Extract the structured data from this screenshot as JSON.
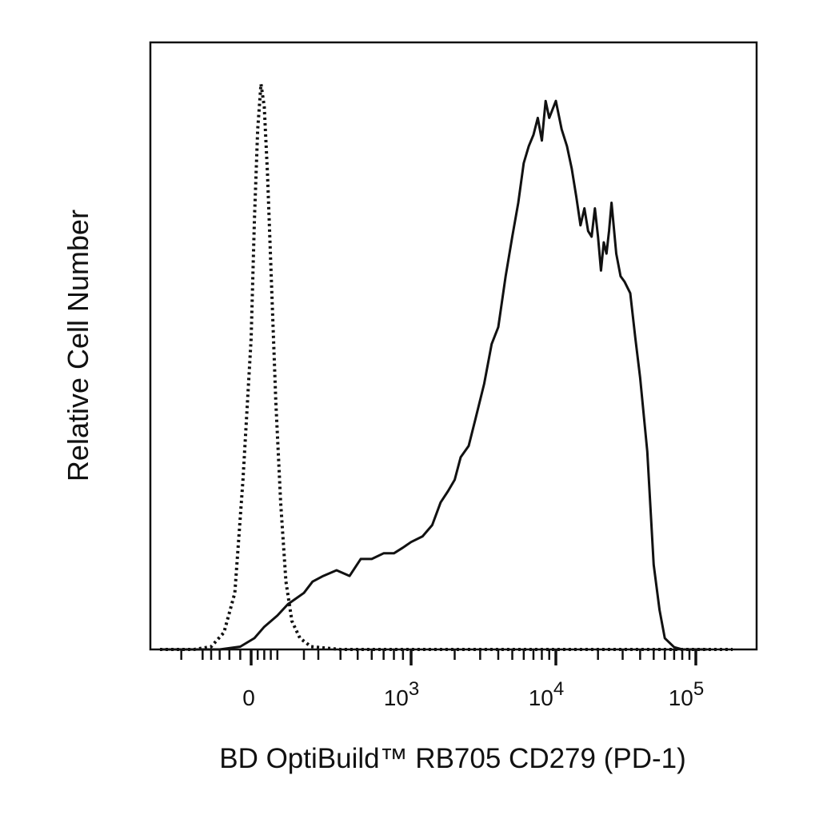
{
  "chart_data": {
    "type": "area",
    "xlabel": "BD OptiBuild™ RB705 CD279 (PD-1)",
    "ylabel": "Relative Cell Number",
    "x_scale": "biexponential",
    "x_tick_labels": [
      {
        "base": "0",
        "exp": "",
        "value": 0
      },
      {
        "base": "10",
        "exp": "3",
        "value": 1000
      },
      {
        "base": "10",
        "exp": "4",
        "value": 10000
      },
      {
        "base": "10",
        "exp": "5",
        "value": 100000
      }
    ],
    "xlim": [
      -200,
      180000
    ],
    "ylim": [
      0,
      1.0
    ],
    "y_ticks_shown": false,
    "grid": false,
    "colors": {
      "series": "#111111",
      "axis": "#111111",
      "background": "#ffffff"
    },
    "series": [
      {
        "style": "dotted",
        "x": [
          -200,
          -120,
          -80,
          -50,
          -30,
          -15,
          0,
          10,
          20,
          30,
          40,
          50,
          60,
          75,
          90,
          110,
          140,
          180,
          250,
          400,
          1000,
          10000,
          180000
        ],
        "y": [
          0,
          0,
          0.005,
          0.03,
          0.1,
          0.3,
          0.55,
          0.76,
          0.92,
          1.0,
          0.96,
          0.84,
          0.68,
          0.44,
          0.26,
          0.12,
          0.05,
          0.02,
          0.005,
          0,
          0,
          0,
          0
        ]
      },
      {
        "style": "solid",
        "x": [
          -200,
          -60,
          -20,
          10,
          40,
          80,
          120,
          160,
          200,
          260,
          320,
          380,
          450,
          520,
          600,
          700,
          800,
          900,
          1000,
          1200,
          1400,
          1600,
          1800,
          2000,
          2200,
          2500,
          2800,
          3200,
          3600,
          4000,
          4500,
          5000,
          5500,
          6000,
          6500,
          7000,
          7500,
          8000,
          8500,
          9000,
          10000,
          11000,
          12000,
          13000,
          14000,
          15000,
          16000,
          17000,
          18000,
          19000,
          20000,
          21000,
          22000,
          23000,
          24000,
          25000,
          27000,
          29000,
          31000,
          34000,
          37000,
          40000,
          45000,
          50000,
          55000,
          60000,
          70000,
          80000,
          90000,
          100000,
          110000,
          120000
        ],
        "y": [
          0,
          0,
          0.005,
          0.02,
          0.04,
          0.06,
          0.08,
          0.09,
          0.1,
          0.12,
          0.13,
          0.14,
          0.13,
          0.16,
          0.16,
          0.17,
          0.17,
          0.18,
          0.19,
          0.2,
          0.22,
          0.26,
          0.28,
          0.3,
          0.34,
          0.36,
          0.41,
          0.47,
          0.54,
          0.57,
          0.66,
          0.73,
          0.79,
          0.86,
          0.89,
          0.91,
          0.94,
          0.9,
          0.97,
          0.94,
          0.97,
          0.92,
          0.89,
          0.85,
          0.8,
          0.75,
          0.78,
          0.74,
          0.73,
          0.78,
          0.73,
          0.67,
          0.72,
          0.7,
          0.74,
          0.79,
          0.7,
          0.66,
          0.65,
          0.63,
          0.55,
          0.48,
          0.35,
          0.15,
          0.07,
          0.02,
          0.004,
          0,
          0,
          0,
          0,
          0
        ]
      }
    ]
  }
}
